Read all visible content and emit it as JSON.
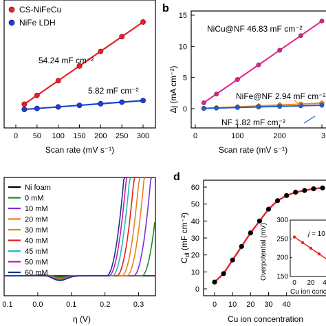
{
  "panel_letters": {
    "b": "b",
    "d": "d"
  },
  "chart_data": [
    {
      "panel": "a",
      "type": "scatter",
      "xlabel": "Scan rate (mV s⁻¹)",
      "ylabel": "",
      "xlim": [
        0,
        320
      ],
      "x_ticks": [
        "0",
        "50",
        "100",
        "150",
        "200",
        "250",
        "300"
      ],
      "legend": {
        "position": "top-left",
        "entries": [
          "CS-NiFeCu",
          "NiFe LDH"
        ]
      },
      "colors": {
        "CS-NiFeCu": "#e8202a",
        "NiFe LDH": "#1f3fd8"
      },
      "annotations": [
        "54.24 mF cm⁻²",
        "5.82 mF cm⁻²"
      ],
      "series": [
        {
          "name": "CS-NiFeCu",
          "x": [
            20,
            50,
            100,
            150,
            200,
            250,
            300
          ],
          "y": [
            1.09,
            2.71,
            5.42,
            8.14,
            10.85,
            13.56,
            16.27
          ]
        },
        {
          "name": "NiFe LDH",
          "x": [
            20,
            50,
            100,
            150,
            200,
            250,
            300
          ],
          "y": [
            0.12,
            0.29,
            0.58,
            0.87,
            1.16,
            1.46,
            1.75
          ]
        }
      ]
    },
    {
      "panel": "b",
      "type": "scatter",
      "xlabel": "Scan rate (mV s⁻¹)",
      "ylabel": "Δj (mA cm⁻²)",
      "ylim": [
        -1,
        15
      ],
      "y_ticks": [
        "0",
        "5",
        "10",
        "15"
      ],
      "x_ticks": [
        "0",
        "100",
        "200",
        "3"
      ],
      "colors": {
        "NiCu@NF": "#e0208c",
        "NiFe@NF": "#f08a1c",
        "NF": "#1f5fd8"
      },
      "annotations": [
        "NiCu@NF 46.83 mF cm⁻²",
        "NiFe@NF 2.94 mF cm⁻²",
        "NF 1.82 mF cm⁻²"
      ],
      "series": [
        {
          "name": "NiCu@NF",
          "x": [
            20,
            50,
            100,
            150,
            200,
            250,
            300
          ],
          "y": [
            0.94,
            2.34,
            4.68,
            7.02,
            9.37,
            11.71,
            14.05
          ]
        },
        {
          "name": "NiFe@NF",
          "x": [
            20,
            50,
            100,
            150,
            200,
            250,
            300
          ],
          "y": [
            0.06,
            0.15,
            0.29,
            0.44,
            0.59,
            0.74,
            0.88
          ]
        },
        {
          "name": "NF",
          "x": [
            20,
            50,
            100,
            150,
            200,
            250,
            300
          ],
          "y": [
            0.04,
            0.09,
            0.18,
            0.27,
            0.36,
            0.46,
            0.55
          ]
        }
      ]
    },
    {
      "panel": "c",
      "type": "line",
      "xlabel": "η (V)",
      "ylabel": "",
      "xlim": [
        -0.1,
        0.35
      ],
      "x_ticks": [
        "0.1",
        "0.0",
        "0.1",
        "0.2",
        "0.3"
      ],
      "legend": {
        "position": "top-left",
        "entries": [
          "Ni foam",
          "0 mM",
          "10 mM",
          "20 mM",
          "30 mM",
          "40 mM",
          "45 mM",
          "50 mM",
          "60 mM"
        ]
      },
      "series": [
        {
          "name": "Ni foam",
          "color": "#000000",
          "onset": 0.4,
          "dip": 0.0
        },
        {
          "name": "0 mM",
          "color": "#228b22",
          "onset": 0.31,
          "dip": 1.5
        },
        {
          "name": "10 mM",
          "color": "#7b2fd6",
          "onset": 0.285,
          "dip": 3.0
        },
        {
          "name": "20 mM",
          "color": "#f07f1a",
          "onset": 0.265,
          "dip": 4.0
        },
        {
          "name": "30 mM",
          "color": "#d98a20",
          "onset": 0.25,
          "dip": 4.5
        },
        {
          "name": "40 mM",
          "color": "#e61e1e",
          "onset": 0.235,
          "dip": 5.0
        },
        {
          "name": "45 mM",
          "color": "#1fbfb0",
          "onset": 0.222,
          "dip": 5.5
        },
        {
          "name": "50 mM",
          "color": "#c31aa8",
          "onset": 0.212,
          "dip": 6.0
        },
        {
          "name": "60 mM",
          "color": "#1a2f8f",
          "onset": 0.205,
          "dip": 7.0
        }
      ]
    },
    {
      "panel": "d",
      "type": "line",
      "xlabel": "Cu ion concentration",
      "ylabel": "C₄ₗ (mF cm⁻²)",
      "ylabel_main": "C",
      "ylabel_sub": "dl",
      "ylabel_rest": " (mF cm⁻²)",
      "xlim": [
        -5,
        62
      ],
      "ylim": [
        0,
        63
      ],
      "x_ticks": [
        "0",
        "10",
        "20",
        "30",
        "40"
      ],
      "y_ticks": [
        "0",
        "10",
        "20",
        "30",
        "40",
        "50",
        "60"
      ],
      "colors": {
        "fit": "#e8202a",
        "points": "#000000"
      },
      "x": [
        0,
        5,
        10,
        15,
        20,
        25,
        30,
        35,
        40,
        45,
        50,
        55,
        60
      ],
      "y": [
        4,
        9,
        17,
        25,
        33,
        40,
        47,
        52,
        55,
        57,
        58,
        59,
        59.5
      ],
      "inset": {
        "type": "line",
        "xlabel": "Cu ion conce",
        "ylabel": "Overpotential (mV)",
        "annotation": "j = 10 m",
        "annotation_j": "j",
        "annotation_rest": " = 10 m",
        "ylim": [
          150,
          300
        ],
        "y_ticks": [
          "150",
          "200",
          "250",
          "300"
        ],
        "x_ticks": [
          "0",
          "20",
          "4"
        ],
        "x": [
          0,
          10,
          20,
          30,
          40
        ],
        "y": [
          255,
          240,
          225,
          210,
          195
        ]
      }
    }
  ]
}
